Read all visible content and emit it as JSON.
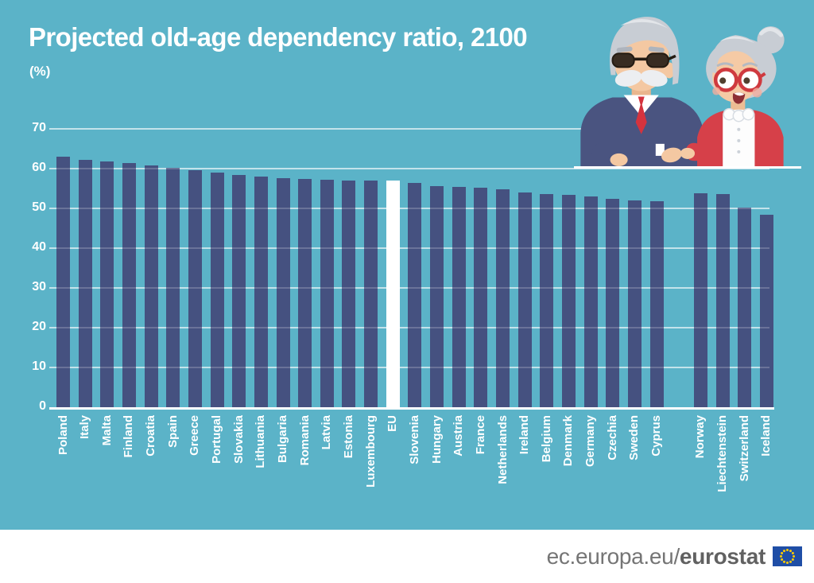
{
  "header": {
    "title": "Projected old-age dependency ratio, 2100",
    "unit": "(%)"
  },
  "illustration": {
    "name": "elderly-couple-illustration",
    "alt": "Elderly man and woman leaning on a ledge"
  },
  "footer": {
    "url_regular": "ec.europa.eu/",
    "url_bold": "eurostat",
    "flag_icon": "eu-flag-icon",
    "flag_blue": "#1f4ea6",
    "flag_star_color": "#ffcc00"
  },
  "colors": {
    "background": "#5bb3c8",
    "bar": "#455180",
    "highlight_bar": "#ffffff",
    "text": "#ffffff",
    "footer_text": "#757575"
  },
  "chart_data": {
    "type": "bar",
    "title": "Projected old-age dependency ratio, 2100",
    "ylabel": "%",
    "ylim": [
      0,
      70
    ],
    "yticks": [
      0,
      10,
      20,
      30,
      40,
      50,
      60,
      70
    ],
    "grid": true,
    "categories": [
      "Poland",
      "Italy",
      "Malta",
      "Finland",
      "Croatia",
      "Spain",
      "Greece",
      "Portugal",
      "Slovakia",
      "Lithuania",
      "Bulgaria",
      "Romania",
      "Latvia",
      "Estonia",
      "Luxembourg",
      "EU",
      "Slovenia",
      "Hungary",
      "Austria",
      "France",
      "Netherlands",
      "Ireland",
      "Belgium",
      "Denmark",
      "Germany",
      "Czechia",
      "Sweden",
      "Cyprus",
      "Norway",
      "Liechtenstein",
      "Switzerland",
      "Iceland"
    ],
    "values": [
      63.0,
      62.2,
      61.8,
      61.4,
      60.8,
      60.2,
      59.6,
      59.1,
      58.5,
      58.1,
      57.7,
      57.5,
      57.3,
      57.1,
      57.0,
      57.1,
      56.5,
      55.6,
      55.4,
      55.3,
      54.9,
      54.1,
      53.6,
      53.4,
      53.1,
      52.4,
      52.1,
      51.9,
      53.8,
      53.7,
      50.2,
      48.5
    ],
    "highlight_index": 15,
    "highlight_category": "EU",
    "gap_before_index": 28,
    "bar_color": "#455180",
    "highlight_color": "#ffffff",
    "legend": "none"
  }
}
